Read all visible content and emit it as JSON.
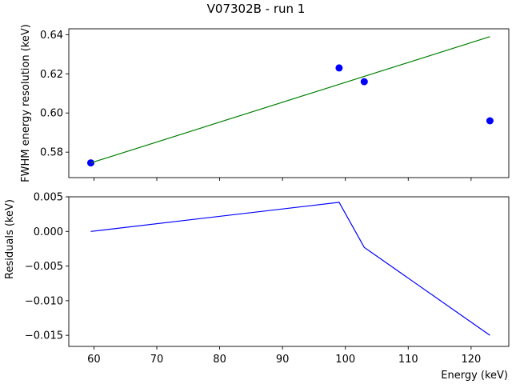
{
  "figure": {
    "title": "V07302B - run 1"
  },
  "chart_data": [
    {
      "type": "scatter",
      "name": "resolution",
      "ylabel": "FWHM energy resolution (keV)",
      "xlabel": "",
      "xlim": [
        56,
        126
      ],
      "ylim": [
        0.567,
        0.643
      ],
      "xticks": [
        60,
        70,
        80,
        90,
        100,
        110,
        120
      ],
      "show_xtick_labels": false,
      "yticks": [
        0.58,
        0.6,
        0.62,
        0.64
      ],
      "ytick_labels": [
        "0.58",
        "0.60",
        "0.62",
        "0.64"
      ],
      "grid": false,
      "series": [
        {
          "kind": "points",
          "color": "#0000ff",
          "x": [
            59.5,
            99,
            103,
            123
          ],
          "y": [
            0.5745,
            0.623,
            0.616,
            0.596
          ]
        },
        {
          "kind": "line",
          "color": "#008000",
          "x": [
            59.5,
            123
          ],
          "y": [
            0.5745,
            0.639
          ]
        }
      ]
    },
    {
      "type": "line",
      "name": "residuals",
      "ylabel": "Residuals (keV)",
      "xlabel": "Energy (keV)",
      "xlim": [
        56,
        126
      ],
      "ylim": [
        -0.0166,
        0.005
      ],
      "xticks": [
        60,
        70,
        80,
        90,
        100,
        110,
        120
      ],
      "xtick_labels": [
        "60",
        "70",
        "80",
        "90",
        "100",
        "110",
        "120"
      ],
      "show_xtick_labels": true,
      "yticks": [
        0.005,
        0.0,
        -0.005,
        -0.01,
        -0.015
      ],
      "ytick_labels": [
        "0.005",
        "0.000",
        "−0.005",
        "−0.010",
        "−0.015"
      ],
      "grid": false,
      "series": [
        {
          "kind": "line",
          "color": "#0000ff",
          "x": [
            59.5,
            99,
            103,
            123
          ],
          "y": [
            0.0,
            0.0042,
            -0.0023,
            -0.015
          ]
        }
      ]
    }
  ]
}
